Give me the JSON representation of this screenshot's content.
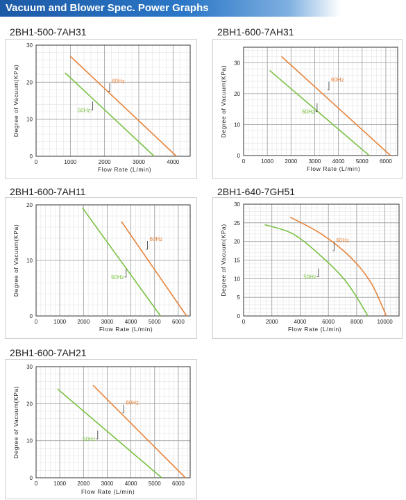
{
  "header": {
    "title": "Vacuum and Blower Spec. Power Graphs"
  },
  "colors": {
    "header": "#2c78c8",
    "hz60": "#e8843a",
    "hz50": "#7ac143"
  },
  "chart_data": [
    {
      "type": "line",
      "title": "2BH1-500-7AH31",
      "xlabel": "Flow Rate (L/min)",
      "ylabel": "Degree of Vacuum(KPa)",
      "xlim": [
        0,
        4500
      ],
      "ylim": [
        0,
        30
      ],
      "xticks": [
        0,
        1000,
        2000,
        3000,
        4000
      ],
      "yticks": [
        0,
        10,
        20,
        30
      ],
      "series": [
        {
          "name": "60Hz",
          "color": "#e8843a",
          "x": [
            1000,
            4100
          ],
          "y": [
            27,
            0
          ],
          "label_at": [
            2150,
            19
          ]
        },
        {
          "name": "50Hz",
          "color": "#7ac143",
          "x": [
            850,
            3450
          ],
          "y": [
            22.5,
            0
          ],
          "label_at": [
            1650,
            14
          ]
        }
      ]
    },
    {
      "type": "line",
      "title": "2BH1-600-7AH31",
      "xlabel": "Flow Rate (L/min)",
      "ylabel": "Degree of Vacuum(KPa)",
      "xlim": [
        0,
        6500
      ],
      "ylim": [
        0,
        35
      ],
      "xticks": [
        0,
        1000,
        2000,
        3000,
        4000,
        5000,
        6000
      ],
      "yticks": [
        0,
        10,
        20,
        30
      ],
      "series": [
        {
          "name": "60Hz",
          "color": "#e8843a",
          "x": [
            1600,
            6200
          ],
          "y": [
            32,
            0
          ],
          "label_at": [
            3600,
            23
          ]
        },
        {
          "name": "50Hz",
          "color": "#7ac143",
          "x": [
            1100,
            5300
          ],
          "y": [
            27.5,
            0
          ],
          "label_at": [
            3100,
            16
          ]
        }
      ]
    },
    {
      "type": "line",
      "title": "2BH1-600-7AH11",
      "xlabel": "Flow Rate (L/min)",
      "ylabel": "Degree of Vacuum(KPa)",
      "xlim": [
        0,
        6500
      ],
      "ylim": [
        0,
        20
      ],
      "xticks": [
        0,
        1000,
        2000,
        3000,
        4000,
        5000,
        6000
      ],
      "yticks": [
        0,
        10,
        20
      ],
      "series": [
        {
          "name": "60Hz",
          "color": "#e8843a",
          "x": [
            3600,
            6350
          ],
          "y": [
            17,
            0
          ],
          "label_at": [
            4700,
            13
          ]
        },
        {
          "name": "50Hz",
          "color": "#7ac143",
          "x": [
            1950,
            5250
          ],
          "y": [
            19.5,
            0
          ],
          "label_at": [
            3800,
            8
          ]
        }
      ]
    },
    {
      "type": "line",
      "title": "2BH1-640-7GH51",
      "xlabel": "Flow Rate (L/min)",
      "ylabel": "Degree of Vacuum(KPa)",
      "xlim": [
        0,
        11000
      ],
      "ylim": [
        0,
        30
      ],
      "xticks": [
        0,
        2000,
        4000,
        6000,
        8000,
        10000
      ],
      "yticks": [
        0,
        5,
        10,
        15,
        20,
        25,
        30
      ],
      "series": [
        {
          "name": "60Hz",
          "color": "#e8843a",
          "x": [
            3300,
            5500,
            7500,
            9000,
            10100
          ],
          "y": [
            26.5,
            22,
            16,
            9,
            0
          ],
          "label_at": [
            6400,
            19
          ]
        },
        {
          "name": "50Hz",
          "color": "#7ac143",
          "x": [
            1500,
            3500,
            5500,
            7300,
            8800
          ],
          "y": [
            24.5,
            22,
            16,
            9,
            0
          ],
          "label_at": [
            5300,
            12
          ]
        }
      ]
    },
    {
      "type": "line",
      "title": "2BH1-600-7AH21",
      "xlabel": "Flow Rate (L/min)",
      "ylabel": "Degree of Vacuum(KPa)",
      "xlim": [
        0,
        6500
      ],
      "ylim": [
        0,
        30
      ],
      "xticks": [
        0,
        1000,
        2000,
        3000,
        4000,
        5000,
        6000
      ],
      "yticks": [
        0,
        10,
        20,
        30
      ],
      "series": [
        {
          "name": "60Hz",
          "color": "#e8843a",
          "x": [
            2400,
            6300
          ],
          "y": [
            25,
            0
          ],
          "label_at": [
            3700,
            19
          ]
        },
        {
          "name": "50Hz",
          "color": "#7ac143",
          "x": [
            900,
            5300
          ],
          "y": [
            24,
            0
          ],
          "label_at": [
            2600,
            12
          ]
        }
      ]
    }
  ]
}
